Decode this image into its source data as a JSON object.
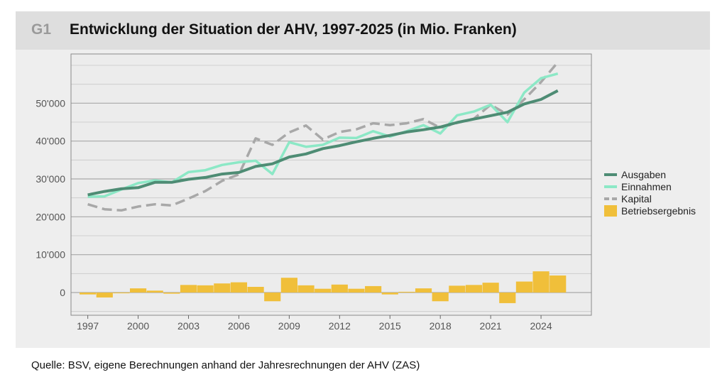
{
  "figure": {
    "label": "G1",
    "title": "Entwicklung der Situation der AHV, 1997-2025 (in Mio. Franken)"
  },
  "source_note": "Quelle: BSV, eigene Berechnungen anhand der Jahresrechnungen der AHV (ZAS)",
  "colors": {
    "panel_bg": "#eeeeee",
    "titlebar_bg": "#dedede",
    "ausgaben": "#4e8c74",
    "einnahmen": "#8ce8c6",
    "kapital": "#a8a8a8",
    "betriebsergebnis": "#f0bf3a"
  },
  "chart_data": {
    "type": "line",
    "x": [
      1997,
      1998,
      1999,
      2000,
      2001,
      2002,
      2003,
      2004,
      2005,
      2006,
      2007,
      2008,
      2009,
      2010,
      2011,
      2012,
      2013,
      2014,
      2015,
      2016,
      2017,
      2018,
      2019,
      2020,
      2021,
      2022,
      2023,
      2024,
      2025
    ],
    "xlim": [
      1996,
      2027
    ],
    "ylim": [
      -6000,
      63000
    ],
    "yticks": [
      0,
      10000,
      20000,
      30000,
      40000,
      50000
    ],
    "ytick_labels": [
      "0",
      "10'000",
      "20'000",
      "30'000",
      "40'000",
      "50'000"
    ],
    "xticks": [
      1997,
      2000,
      2003,
      2006,
      2009,
      2012,
      2015,
      2018,
      2021,
      2024
    ],
    "xtick_labels": [
      "1997",
      "2000",
      "2003",
      "2006",
      "2009",
      "2012",
      "2015",
      "2018",
      "2021",
      "2024"
    ],
    "grid": true,
    "legend_position": "right",
    "series": [
      {
        "name": "Ausgaben",
        "kind": "line",
        "values": [
          25800,
          26700,
          27400,
          27700,
          29100,
          29100,
          29900,
          30400,
          31300,
          31700,
          33300,
          34000,
          35800,
          36600,
          38000,
          38800,
          39800,
          40700,
          41500,
          42400,
          43000,
          43700,
          44900,
          45800,
          46700,
          47600,
          49800,
          51000,
          53300
        ]
      },
      {
        "name": "Einnahmen",
        "kind": "line",
        "values": [
          25300,
          25400,
          27200,
          28900,
          29600,
          29100,
          31800,
          32300,
          33700,
          34400,
          34800,
          31300,
          39700,
          38500,
          39000,
          40900,
          40800,
          42600,
          41200,
          42600,
          44200,
          42000,
          46800,
          47800,
          49600,
          45000,
          52800,
          56600,
          57800
        ]
      },
      {
        "name": "Kapital",
        "kind": "dashed-line",
        "values": [
          23300,
          22000,
          21700,
          22700,
          23300,
          23000,
          24800,
          26800,
          29500,
          31200,
          40700,
          39000,
          42300,
          44100,
          40400,
          42400,
          43100,
          44700,
          44200,
          44700,
          45800,
          43500,
          44800,
          45900,
          49600,
          47000,
          51000,
          55600,
          60800
        ]
      },
      {
        "name": "Betriebsergebnis",
        "kind": "bar",
        "values": [
          -500,
          -1300,
          -200,
          1100,
          500,
          -300,
          2000,
          1900,
          2400,
          2700,
          1500,
          -2300,
          3900,
          1900,
          1000,
          2100,
          1000,
          1700,
          -500,
          200,
          1100,
          -2300,
          1800,
          2000,
          2600,
          -2800,
          2900,
          5600,
          4500
        ]
      }
    ]
  }
}
